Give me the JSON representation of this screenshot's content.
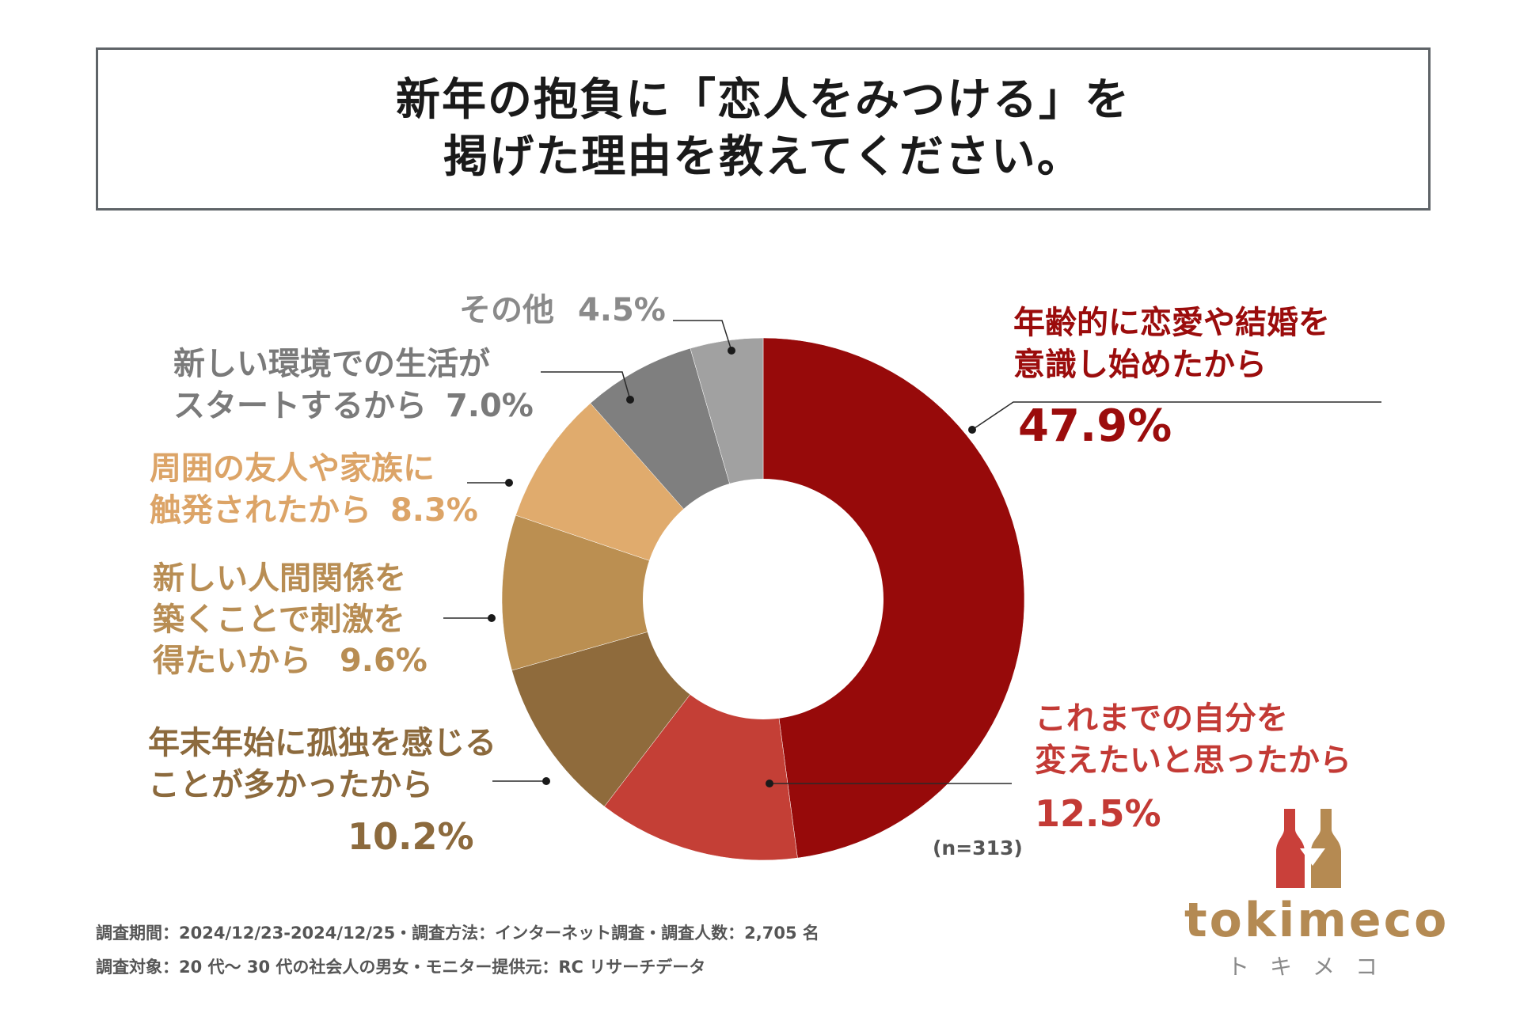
{
  "title": {
    "line1": "新年の抱負に「恋人をみつける」を",
    "line2": "掲げた理由を教えてください。"
  },
  "chart_data": {
    "type": "pie",
    "donut": true,
    "sample_note": "(n=313)",
    "slices": [
      {
        "label_lines": [
          "年齢的に恋愛や結婚を",
          "意識し始めたから"
        ],
        "value": 47.9,
        "value_text": "47.9%",
        "color": "#970a0a",
        "text_color": "#9b0c0c"
      },
      {
        "label_lines": [
          "これまでの自分を",
          "変えたいと思ったから"
        ],
        "value": 12.5,
        "value_text": "12.5%",
        "color": "#c43f36",
        "text_color": "#c33a35"
      },
      {
        "label_lines": [
          "年末年始に孤独を感じる",
          "ことが多かったから"
        ],
        "value": 10.2,
        "value_text": "10.2%",
        "color": "#8f6b3c",
        "text_color": "#8c6a3d"
      },
      {
        "label_lines": [
          "新しい人間関係を",
          "築くことで刺激を",
          "得たいから"
        ],
        "value": 9.6,
        "value_text": "9.6%",
        "color": "#bb8f51",
        "text_color": "#b88d53"
      },
      {
        "label_lines": [
          "周囲の友人や家族に",
          "触発されたから"
        ],
        "value": 8.3,
        "value_text": "8.3%",
        "color": "#e0ab6d",
        "text_color": "#dca467"
      },
      {
        "label_lines": [
          "新しい環境での生活が",
          "スタートするから"
        ],
        "value": 7.0,
        "value_text": "7.0%",
        "color": "#7f7f7f",
        "text_color": "#7a7a7a"
      },
      {
        "label_lines": [
          "その他"
        ],
        "value": 4.5,
        "value_text": "4.5%",
        "color": "#a1a1a1",
        "text_color": "#8a8a8a"
      }
    ]
  },
  "footer": {
    "line1": "調査期間：2024/12/23-2024/12/25・調査方法：インターネット調査・調査人数：2,705 名",
    "line2": "調査対象：20 代〜 30 代の社会人の男女・モニター提供元：RC リサーチデータ"
  },
  "logo": {
    "name": "tokimeco",
    "kana": "トキメコ",
    "icon": "wine-bottles-icon",
    "colors": {
      "bottle_left": "#c9403a",
      "bottle_right": "#b58a52"
    }
  }
}
